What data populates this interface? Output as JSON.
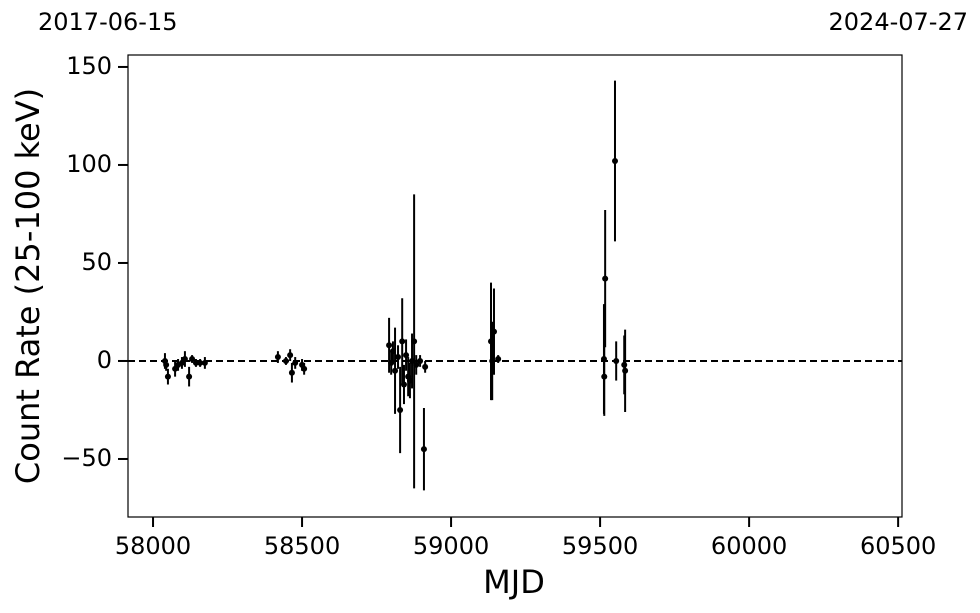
{
  "chart_data": {
    "type": "scatter",
    "top_left_label": "2017-06-15",
    "top_right_label": "2024-07-27",
    "xlabel": "MJD",
    "ylabel": "Count Rate (25-100 keV)",
    "xlim": [
      57916,
      60513
    ],
    "ylim": [
      -79.6,
      156.1
    ],
    "xticks": [
      58000,
      58500,
      59000,
      59500,
      60000,
      60500
    ],
    "yticks": [
      {
        "value": -50,
        "label": "−50"
      },
      0,
      50,
      100,
      150
    ],
    "hline": 0,
    "color": "#000000",
    "x": [
      58040,
      58044,
      58050,
      58074,
      58084,
      58097,
      58107,
      58121,
      58131,
      58144,
      58158,
      58174,
      58419,
      58446,
      58460,
      58466,
      58477,
      58500,
      58507,
      58792,
      58799,
      58805,
      58812,
      58822,
      58829,
      58836,
      58842,
      58849,
      58856,
      58862,
      58869,
      58876,
      58883,
      58896,
      58909,
      58913,
      59134,
      59138,
      59144,
      59158,
      59513,
      59514,
      59517,
      59550,
      59554,
      59581,
      59584
    ],
    "values": [
      0,
      -2,
      -8,
      -4,
      -2,
      -1,
      1,
      -8,
      1,
      -1,
      -1,
      -1,
      2,
      0,
      3,
      -6,
      -1,
      -2,
      -4,
      8,
      -1,
      5,
      -5,
      2,
      -25,
      10,
      -12,
      3,
      -8,
      -10,
      0,
      10,
      -2,
      0,
      -45,
      -3,
      10,
      0,
      15,
      1,
      1,
      -8,
      42,
      102,
      0,
      -2,
      -5
    ],
    "errors": [
      4,
      3,
      4,
      4,
      3,
      3,
      4,
      5,
      2,
      2,
      2,
      3,
      3,
      2,
      3,
      5,
      3,
      3,
      3,
      14,
      6,
      5,
      22,
      6,
      22,
      22,
      10,
      8,
      10,
      9,
      14,
      75,
      5,
      3,
      21,
      3,
      30,
      20,
      22,
      2,
      28,
      20,
      35,
      41,
      10,
      15,
      21
    ]
  }
}
